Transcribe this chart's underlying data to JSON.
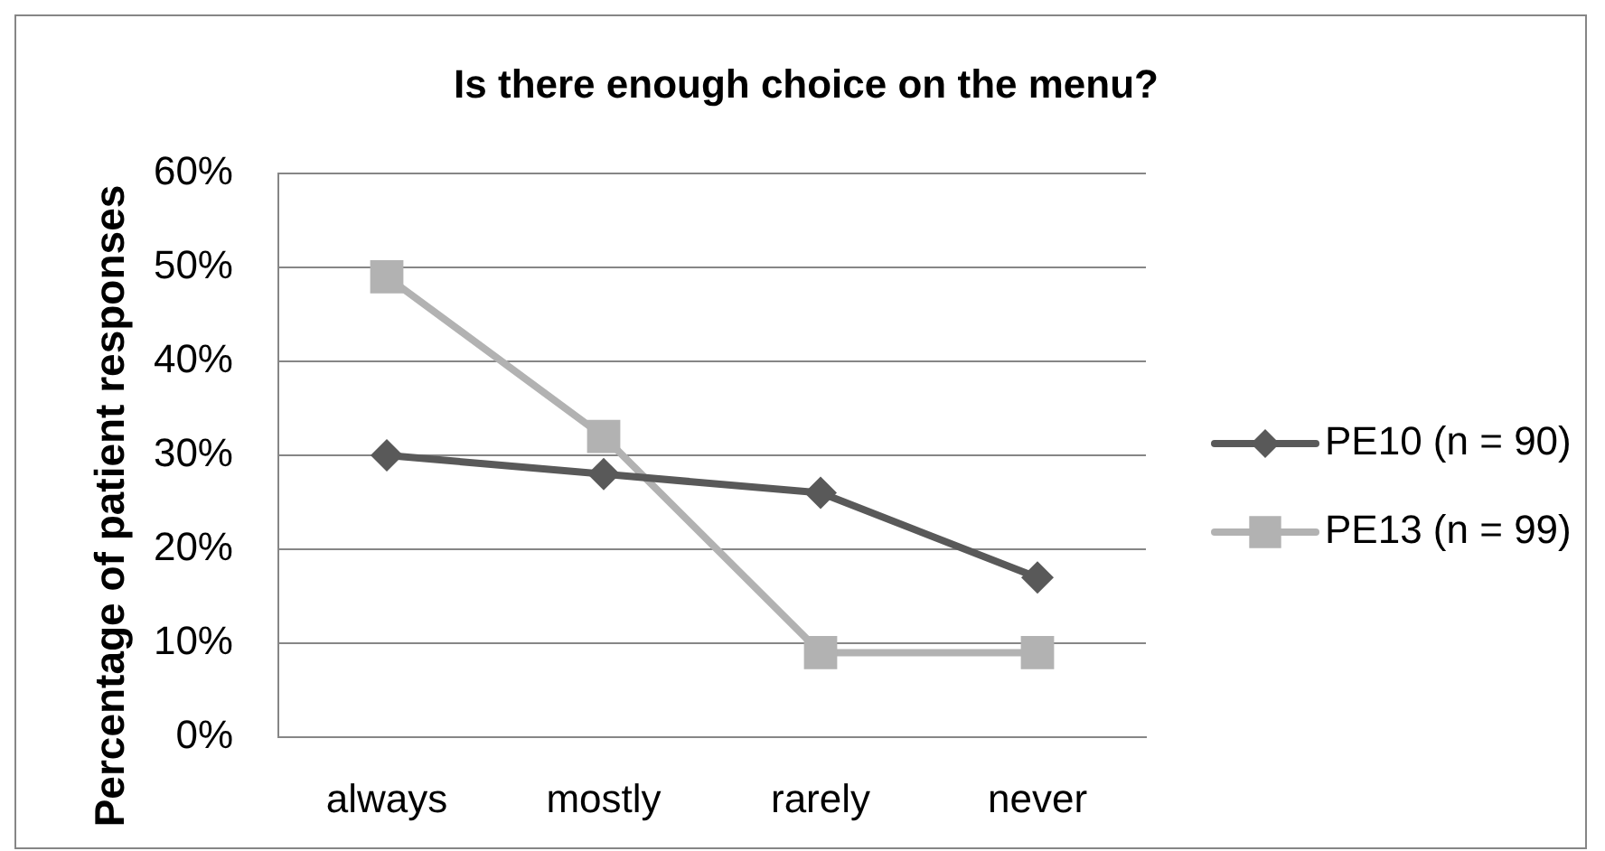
{
  "chart_data": {
    "type": "line",
    "title": "Is there enough choice on the menu?",
    "ylabel": "Percentage of patient responses",
    "categories": [
      "always",
      "mostly",
      "rarely",
      "never"
    ],
    "series": [
      {
        "name": "PE10 (n = 90)",
        "color": "#595959",
        "marker": "diamond",
        "values": [
          30,
          28,
          26,
          17
        ]
      },
      {
        "name": "PE13 (n = 99)",
        "color": "#b2b2b2",
        "marker": "square",
        "values": [
          49,
          32,
          9,
          9
        ]
      }
    ],
    "ylim": [
      0,
      60
    ],
    "yticks": [
      {
        "value": 0,
        "label": "0%"
      },
      {
        "value": 10,
        "label": "10%"
      },
      {
        "value": 20,
        "label": "20%"
      },
      {
        "value": 30,
        "label": "30%"
      },
      {
        "value": 40,
        "label": "40%"
      },
      {
        "value": 50,
        "label": "50%"
      },
      {
        "value": 60,
        "label": "60%"
      }
    ],
    "grid": "y",
    "legend": "right",
    "line_style": "solid"
  }
}
